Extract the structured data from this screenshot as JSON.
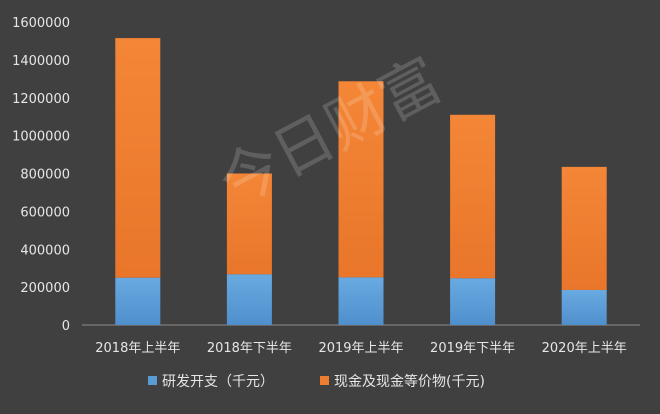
{
  "watermark": "今日财富",
  "chart_data": {
    "type": "bar",
    "stacked": true,
    "title": "",
    "xlabel": "",
    "ylabel": "",
    "categories": [
      "2018年上半年",
      "2018年下半年",
      "2019年上半年",
      "2019年下半年",
      "2020年上半年"
    ],
    "yticks": [
      "0",
      "200000",
      "400000",
      "600000",
      "800000",
      "1000000",
      "1200000",
      "1400000",
      "1600000"
    ],
    "ylim": [
      0,
      1600000
    ],
    "grid": false,
    "legend": "bottom",
    "series": [
      {
        "name": "研发开支（千元）",
        "color": "#5b9bd5",
        "values": [
          250000,
          268000,
          252000,
          247000,
          185000
        ]
      },
      {
        "name": "现金及现金等价物(千元)",
        "color": "#ed7d31",
        "values": [
          1265000,
          532000,
          1035000,
          863000,
          650000
        ]
      }
    ]
  }
}
